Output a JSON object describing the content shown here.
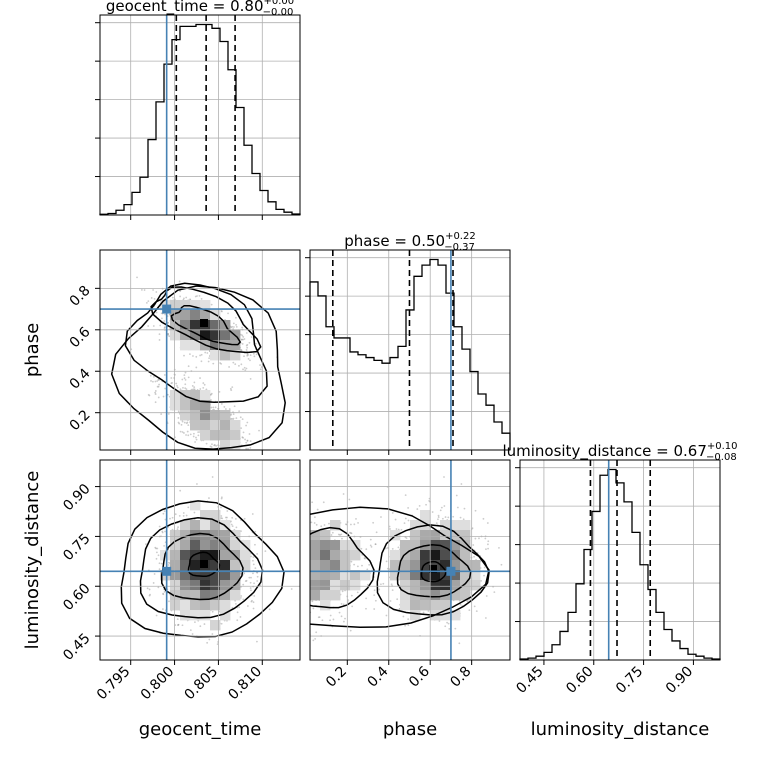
{
  "chart_data": {
    "type": "corner",
    "parameters": [
      {
        "name": "geocent_time",
        "label": "geocent_time",
        "range": [
          0.7915,
          0.8143
        ],
        "ticks": [
          0.795,
          0.8,
          0.805,
          0.81
        ],
        "tick_labels": [
          "0.795",
          "0.800",
          "0.805",
          "0.810"
        ],
        "truth": 0.7991
      },
      {
        "name": "phase",
        "label": "phase",
        "range": [
          0.02,
          0.985
        ],
        "ticks": [
          0.2,
          0.4,
          0.6,
          0.8
        ],
        "tick_labels": [
          "0.2",
          "0.4",
          "0.6",
          "0.8"
        ],
        "truth": 0.7
      },
      {
        "name": "luminosity_distance",
        "label": "luminosity_distance",
        "range": [
          0.378,
          0.98
        ],
        "ticks": [
          0.45,
          0.6,
          0.75,
          0.9
        ],
        "tick_labels": [
          "0.45",
          "0.60",
          "0.75",
          "0.90"
        ],
        "truth": 0.645
      }
    ],
    "titles": [
      {
        "base": "geocent_time = 0.80",
        "sup": "+0.00",
        "sub": "−0.00"
      },
      {
        "base": "phase = 0.50",
        "sup": "+0.22",
        "sub": "−0.37"
      },
      {
        "base": "luminosity_distance = 0.67",
        "sup": "+0.10",
        "sub": "−0.08"
      }
    ],
    "quantiles": [
      [
        0.8002,
        0.8036,
        0.8069
      ],
      [
        0.13,
        0.5,
        0.71
      ],
      [
        0.59,
        0.67,
        0.77
      ]
    ],
    "histograms": [
      [
        0.4,
        0.8,
        2.5,
        5.5,
        12,
        20,
        40,
        60,
        80,
        93,
        100,
        100,
        101,
        101,
        99,
        92,
        77,
        57,
        37,
        22,
        13,
        7,
        3,
        1.5,
        0.5
      ],
      [
        60,
        55,
        44,
        40,
        40,
        35,
        34,
        33,
        32,
        31,
        33,
        37,
        50,
        62,
        66,
        68,
        66,
        56,
        44,
        36,
        28,
        20,
        16,
        10,
        6
      ],
      [
        0.5,
        1,
        2,
        4,
        8,
        15,
        25,
        40,
        58,
        78,
        97,
        100,
        93,
        83,
        67,
        50,
        37,
        25,
        16,
        10,
        6,
        3,
        2,
        1,
        0.5
      ]
    ],
    "grid": true,
    "truth_color": "#4682b4",
    "hist_color": "#000000",
    "contour_color": "#000000"
  }
}
